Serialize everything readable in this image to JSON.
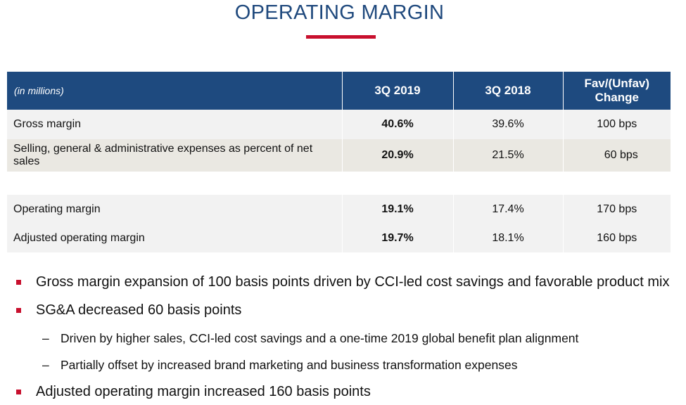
{
  "title": "OPERATING MARGIN",
  "colors": {
    "title": "#1f497d",
    "accent_rule": "#c8102e",
    "header_bg": "#1e4a7f",
    "row_bg": "#f2f2f2",
    "row_alt_bg": "#eae8e2",
    "bullet_marker": "#c8102e"
  },
  "table": {
    "headers": [
      "(in millions)",
      "3Q 2019",
      "3Q 2018",
      "Fav/(Unfav) Change"
    ],
    "rows": [
      {
        "label": "Gross margin",
        "q3_2019": "40.6%",
        "q3_2018": "39.6%",
        "change": "100 bps"
      },
      {
        "label": "Selling, general & administrative expenses as percent of net sales",
        "q3_2019": "20.9%",
        "q3_2018": "21.5%",
        "change": "60 bps"
      },
      {
        "label": "Operating margin",
        "q3_2019": "19.1%",
        "q3_2018": "17.4%",
        "change": "170 bps"
      },
      {
        "label": "Adjusted operating margin",
        "q3_2019": "19.7%",
        "q3_2018": "18.1%",
        "change": "160 bps"
      }
    ]
  },
  "bullets": [
    {
      "text": "Gross margin expansion of 100 basis points driven by CCI-led cost savings and favorable product mix",
      "marker_icon": "square-bullet-icon"
    },
    {
      "text": "SG&A decreased 60 basis points",
      "marker_icon": "square-bullet-icon",
      "sub": [
        {
          "dash": "–",
          "text": "Driven by higher sales, CCI-led cost savings and a one-time 2019 global benefit plan alignment"
        },
        {
          "dash": "–",
          "text": "Partially offset by increased brand marketing and business transformation expenses"
        }
      ]
    },
    {
      "text": "Adjusted operating margin increased 160 basis points",
      "marker_icon": "square-bullet-icon"
    }
  ]
}
